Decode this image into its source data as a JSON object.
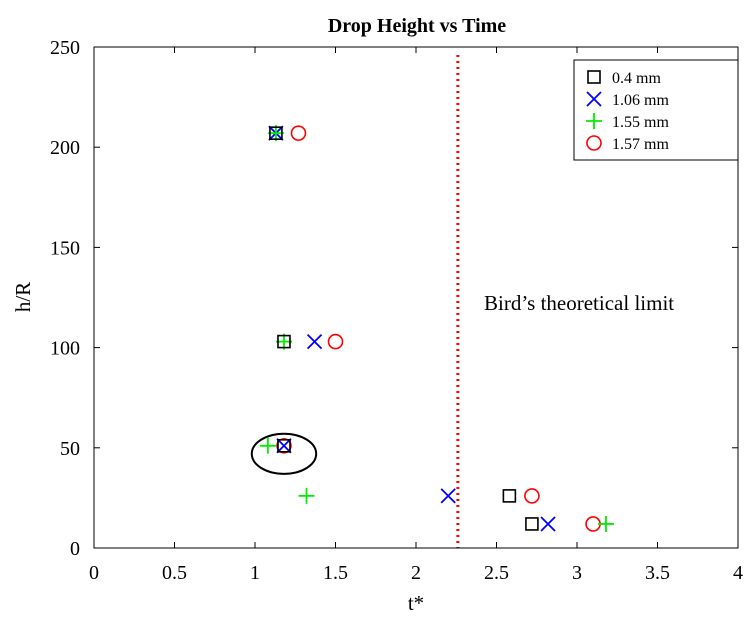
{
  "chart_data": {
    "type": "scatter",
    "title": "Drop Height vs Time",
    "xlabel": "t*",
    "ylabel": "h/R",
    "xlim": [
      0,
      4
    ],
    "ylim": [
      0,
      250
    ],
    "xticks": [
      "0",
      "0.5",
      "1",
      "1.5",
      "2",
      "2.5",
      "3",
      "3.5",
      "4"
    ],
    "yticks": [
      "0",
      "50",
      "100",
      "150",
      "200",
      "250"
    ],
    "grid": false,
    "legend_position": "top-right",
    "series": [
      {
        "name": "0.4 mm",
        "marker": "square",
        "color": "#000000",
        "points": [
          {
            "x": 1.13,
            "y": 207
          },
          {
            "x": 1.18,
            "y": 103
          },
          {
            "x": 1.18,
            "y": 51
          },
          {
            "x": 2.58,
            "y": 26
          },
          {
            "x": 2.72,
            "y": 12
          }
        ]
      },
      {
        "name": "1.06 mm",
        "marker": "x",
        "color": "#0000ff",
        "points": [
          {
            "x": 1.13,
            "y": 207
          },
          {
            "x": 1.37,
            "y": 103
          },
          {
            "x": 1.18,
            "y": 51
          },
          {
            "x": 2.2,
            "y": 26
          },
          {
            "x": 2.82,
            "y": 12
          }
        ]
      },
      {
        "name": "1.55 mm",
        "marker": "plus",
        "color": "#00ee00",
        "points": [
          {
            "x": 1.13,
            "y": 207
          },
          {
            "x": 1.18,
            "y": 103
          },
          {
            "x": 1.08,
            "y": 51
          },
          {
            "x": 1.32,
            "y": 26
          },
          {
            "x": 3.18,
            "y": 12
          }
        ]
      },
      {
        "name": "1.57 mm",
        "marker": "circle",
        "color": "#ff0000",
        "points": [
          {
            "x": 1.27,
            "y": 207
          },
          {
            "x": 1.5,
            "y": 103
          },
          {
            "x": 1.18,
            "y": 51
          },
          {
            "x": 2.72,
            "y": 26
          },
          {
            "x": 3.1,
            "y": 12
          }
        ]
      }
    ],
    "vertical_line": {
      "x": 2.26,
      "color": "#ff0000",
      "style": "dotted"
    },
    "annotation": "Bird’s theoretical limit",
    "highlight_ellipse": {
      "cx": 1.18,
      "cy": 47,
      "rx": 0.2,
      "ry": 10
    }
  }
}
